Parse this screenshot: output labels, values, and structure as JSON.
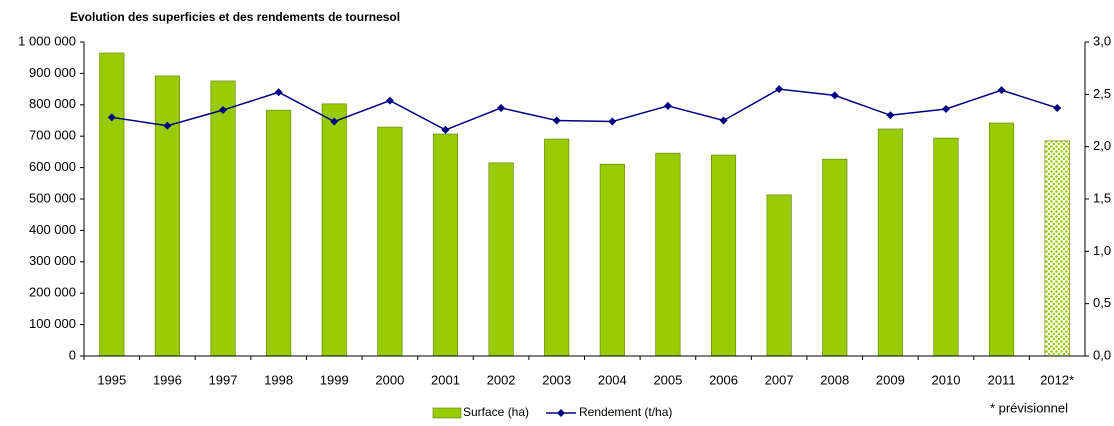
{
  "chart_data": {
    "type": "bar_line",
    "title": "Evolution des superficies et des rendements de tournesol",
    "annotation": "* prévisionnel",
    "categories": [
      "1995",
      "1996",
      "1997",
      "1998",
      "1999",
      "2000",
      "2001",
      "2002",
      "2003",
      "2004",
      "2005",
      "2006",
      "2007",
      "2008",
      "2009",
      "2010",
      "2011",
      "2012*"
    ],
    "series": [
      {
        "name": "Surface (ha)",
        "type": "bar",
        "color": "#99cc00",
        "patterned": [
          false,
          false,
          false,
          false,
          false,
          false,
          false,
          false,
          false,
          false,
          false,
          false,
          false,
          false,
          false,
          false,
          false,
          true
        ],
        "values": [
          965000,
          892000,
          876000,
          783000,
          803000,
          729000,
          707000,
          615000,
          691000,
          611000,
          646000,
          640000,
          513000,
          627000,
          723000,
          694000,
          742000,
          685000
        ]
      },
      {
        "name": "Rendement (t/ha)",
        "type": "line",
        "axis": "y2",
        "color": "#000080",
        "values": [
          2.28,
          2.2,
          2.35,
          2.52,
          2.24,
          2.44,
          2.16,
          2.37,
          2.25,
          2.24,
          2.39,
          2.25,
          2.55,
          2.49,
          2.3,
          2.36,
          2.54,
          2.37
        ]
      }
    ],
    "ylim": [
      0,
      1000000
    ],
    "yticks": [
      0,
      {
        "value": 100000,
        "label": "100 000"
      },
      {
        "value": 200000,
        "label": "200 000"
      },
      {
        "value": 300000,
        "label": "300 000"
      },
      {
        "value": 400000,
        "label": "400 000"
      },
      {
        "value": 500000,
        "label": "500 000"
      },
      {
        "value": 600000,
        "label": "600 000"
      },
      {
        "value": 700000,
        "label": "700 000"
      },
      {
        "value": 800000,
        "label": "800 000"
      },
      {
        "value": 900000,
        "label": "900 000"
      },
      {
        "value": 1000000,
        "label": "1 000 000"
      }
    ],
    "y2lim": [
      0,
      3
    ],
    "y2ticks": [
      {
        "value": 0,
        "label": "0,0"
      },
      {
        "value": 0.5,
        "label": "0,5"
      },
      {
        "value": 1,
        "label": "1,0"
      },
      {
        "value": 1.5,
        "label": "1,5"
      },
      {
        "value": 2,
        "label": "2,0"
      },
      {
        "value": 2.5,
        "label": "2,5"
      },
      {
        "value": 3,
        "label": "3,0"
      }
    ],
    "grid": false,
    "legend": "bottom"
  }
}
